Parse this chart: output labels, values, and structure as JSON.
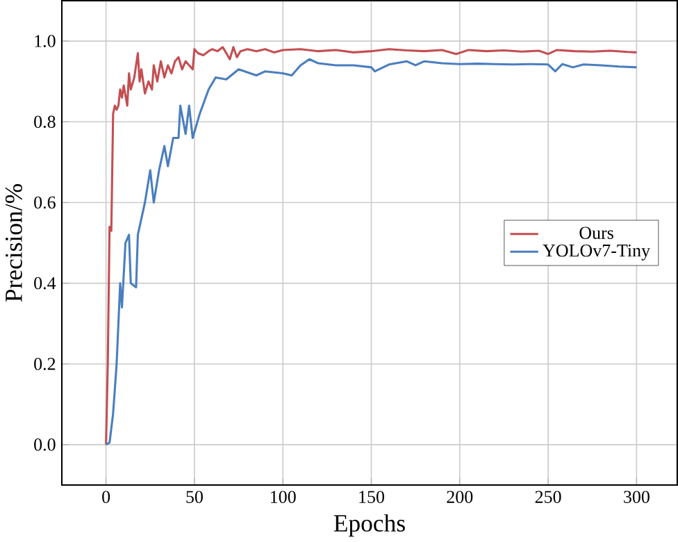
{
  "chart_data": {
    "type": "line",
    "xlabel": "Epochs",
    "ylabel": "Precision/%",
    "xlim": [
      -25,
      323
    ],
    "ylim": [
      -0.1,
      1.1
    ],
    "xticks": [
      0,
      50,
      100,
      150,
      200,
      250,
      300
    ],
    "yticks": [
      {
        "value": 0,
        "label": "0.0"
      },
      {
        "value": 0.2,
        "label": "0.2"
      },
      {
        "value": 0.4,
        "label": "0.4"
      },
      {
        "value": 0.6,
        "label": "0.6"
      },
      {
        "value": 0.8,
        "label": "0.8"
      },
      {
        "value": 1,
        "label": "1.0"
      }
    ],
    "grid": true,
    "legend": "right",
    "marker": "none",
    "line_style": "solid",
    "series": [
      {
        "name": "Ours",
        "color": "#c44e52",
        "x": [
          0,
          1,
          2,
          3,
          4,
          5,
          6,
          7,
          8,
          9,
          10,
          12,
          13,
          14,
          16,
          18,
          19,
          20,
          22,
          24,
          26,
          27,
          29,
          31,
          33,
          35,
          37,
          39,
          41,
          43,
          45,
          47,
          49,
          50,
          52,
          55,
          58,
          60,
          63,
          66,
          68,
          70,
          72,
          74,
          76,
          80,
          85,
          90,
          95,
          100,
          110,
          120,
          130,
          140,
          150,
          160,
          170,
          180,
          190,
          198,
          205,
          215,
          225,
          235,
          245,
          250,
          255,
          265,
          275,
          285,
          295,
          300
        ],
        "values": [
          0,
          0.2,
          0.54,
          0.53,
          0.82,
          0.84,
          0.83,
          0.84,
          0.88,
          0.86,
          0.89,
          0.84,
          0.92,
          0.88,
          0.91,
          0.97,
          0.9,
          0.93,
          0.87,
          0.9,
          0.88,
          0.94,
          0.9,
          0.95,
          0.91,
          0.94,
          0.92,
          0.95,
          0.96,
          0.93,
          0.95,
          0.94,
          0.93,
          0.98,
          0.97,
          0.965,
          0.975,
          0.98,
          0.975,
          0.985,
          0.97,
          0.955,
          0.985,
          0.96,
          0.975,
          0.98,
          0.975,
          0.98,
          0.972,
          0.978,
          0.98,
          0.975,
          0.978,
          0.972,
          0.975,
          0.98,
          0.977,
          0.975,
          0.978,
          0.968,
          0.978,
          0.975,
          0.977,
          0.974,
          0.976,
          0.968,
          0.978,
          0.975,
          0.974,
          0.976,
          0.973,
          0.972
        ]
      },
      {
        "name": "YOLOv7-Tiny",
        "color": "#4a7ebf",
        "x": [
          0,
          2,
          4,
          6,
          8,
          9,
          11,
          13,
          14,
          17,
          18,
          22,
          25,
          27,
          30,
          33,
          35,
          38,
          41,
          42,
          45,
          47,
          49,
          53,
          58,
          62,
          68,
          75,
          85,
          90,
          100,
          105,
          110,
          115,
          120,
          130,
          140,
          150,
          152,
          160,
          170,
          175,
          180,
          190,
          200,
          210,
          220,
          230,
          240,
          250,
          254,
          258,
          264,
          270,
          280,
          290,
          300
        ],
        "values": [
          0,
          0.005,
          0.077,
          0.2,
          0.4,
          0.34,
          0.5,
          0.52,
          0.4,
          0.39,
          0.52,
          0.6,
          0.68,
          0.6,
          0.68,
          0.74,
          0.69,
          0.76,
          0.76,
          0.84,
          0.77,
          0.84,
          0.76,
          0.82,
          0.88,
          0.91,
          0.905,
          0.93,
          0.915,
          0.925,
          0.92,
          0.915,
          0.94,
          0.955,
          0.945,
          0.94,
          0.94,
          0.935,
          0.925,
          0.942,
          0.95,
          0.94,
          0.95,
          0.945,
          0.943,
          0.944,
          0.943,
          0.942,
          0.943,
          0.942,
          0.925,
          0.943,
          0.935,
          0.942,
          0.94,
          0.937,
          0.935
        ]
      }
    ]
  }
}
